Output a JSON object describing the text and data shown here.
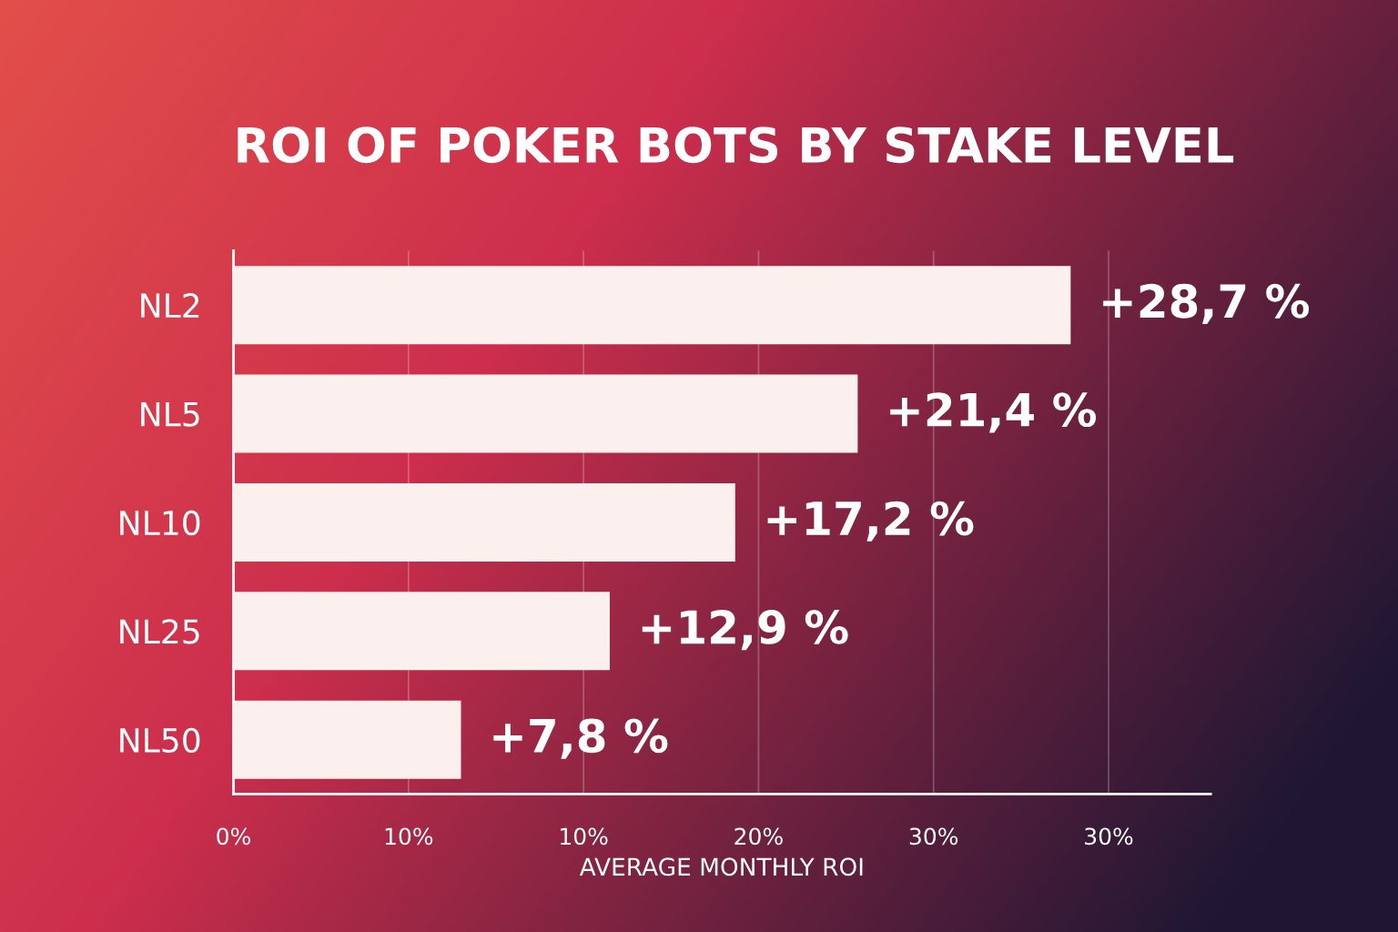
{
  "chart_data": {
    "type": "bar",
    "orientation": "horizontal",
    "title": "ROI OF POKER BOTS BY STAKE LEVEL",
    "xlabel": "AVERAGE MONTHLY ROI",
    "categories": [
      "NL2",
      "NL5",
      "NL10",
      "NL25",
      "NL50"
    ],
    "values": [
      28.7,
      21.4,
      17.2,
      12.9,
      7.8
    ],
    "value_labels": [
      "+28,7 %",
      "+21,4 %",
      "+17,2 %",
      "+12,9 %",
      "+7,8 %"
    ],
    "color": "#fcf0ee",
    "xlim": [
      0,
      33.5
    ],
    "xticks": [
      {
        "value": 0,
        "label": null
      },
      {
        "value": 6,
        "label": null
      },
      {
        "value": 12,
        "label": null
      },
      {
        "value": 18,
        "label": null
      },
      {
        "value": 24,
        "label": null
      },
      {
        "value": 30,
        "label": null
      }
    ],
    "annotations": [
      "0%",
      "10%",
      "10%",
      "20%",
      "30%",
      "30%"
    ],
    "grid": "x"
  }
}
